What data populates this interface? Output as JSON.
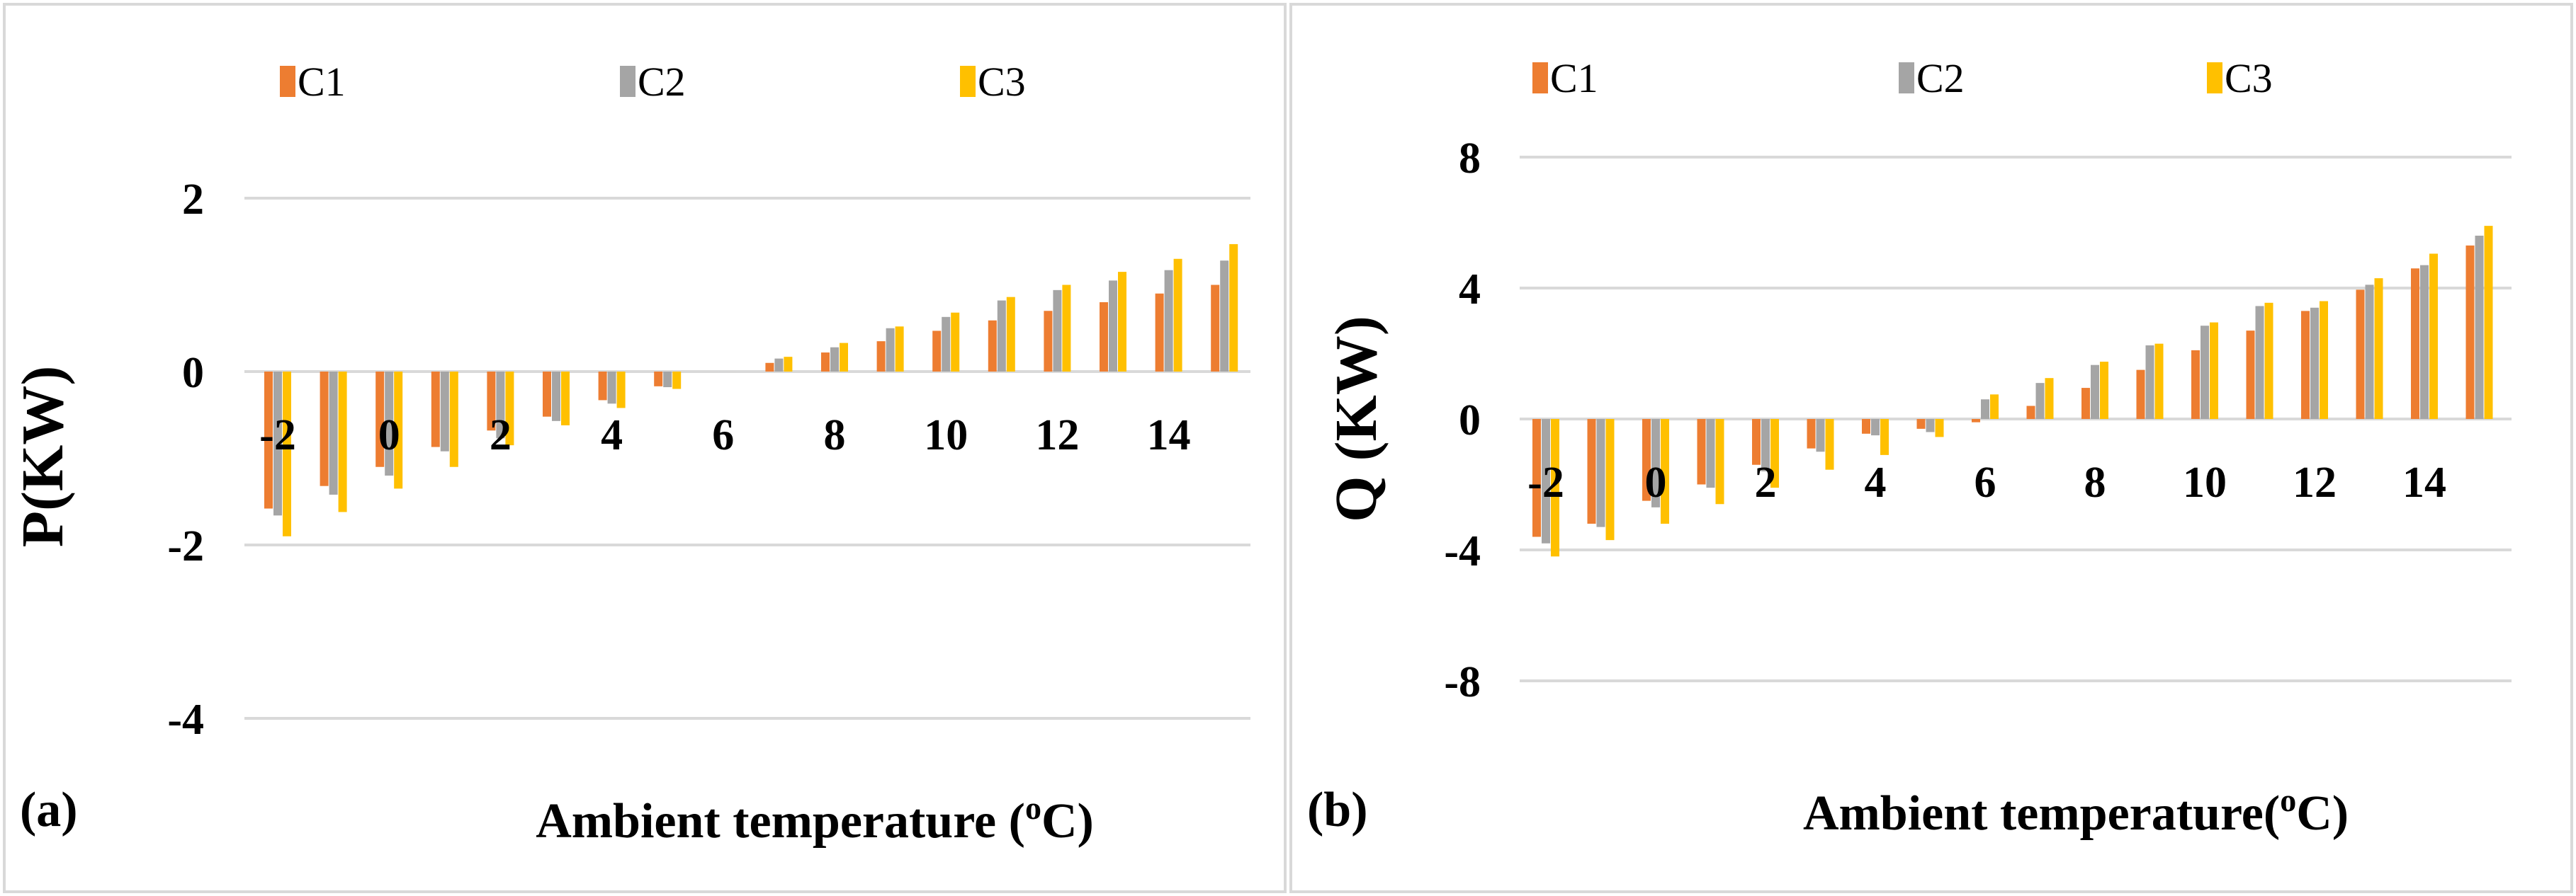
{
  "chart_data": [
    {
      "type": "bar",
      "panel_label": "(a)",
      "xlabel": "Ambient temperature (",
      "xlabel_superscript": "o",
      "xlabel_suffix": "C)",
      "ylabel": "P(KW)",
      "ylim": [
        -4,
        2
      ],
      "yticks": [
        "2",
        "0",
        "-2",
        "-4"
      ],
      "categories": [
        -2,
        -1,
        0,
        1,
        2,
        3,
        4,
        5,
        6,
        7,
        8,
        9,
        10,
        11,
        12,
        13,
        14,
        15
      ],
      "xtick_labels": [
        "-2",
        "0",
        "2",
        "4",
        "6",
        "8",
        "10",
        "12",
        "14"
      ],
      "grid": true,
      "legend": "top",
      "series": [
        {
          "name": "C1",
          "color": "#ED7D31",
          "values": [
            -1.58,
            -1.32,
            -1.1,
            -0.87,
            -0.68,
            -0.52,
            -0.33,
            -0.17,
            0.0,
            0.1,
            0.22,
            0.35,
            0.47,
            0.59,
            0.7,
            0.8,
            0.9,
            1.0
          ]
        },
        {
          "name": "C2",
          "color": "#A5A5A5",
          "values": [
            -1.66,
            -1.42,
            -1.2,
            -0.92,
            -0.77,
            -0.57,
            -0.37,
            -0.18,
            0.0,
            0.15,
            0.28,
            0.5,
            0.63,
            0.82,
            0.94,
            1.05,
            1.17,
            1.28
          ]
        },
        {
          "name": "C3",
          "color": "#FFC000",
          "values": [
            -1.9,
            -1.62,
            -1.35,
            -1.1,
            -0.85,
            -0.62,
            -0.42,
            -0.2,
            0.0,
            0.17,
            0.33,
            0.52,
            0.68,
            0.86,
            1.0,
            1.15,
            1.3,
            1.47
          ]
        }
      ]
    },
    {
      "type": "bar",
      "panel_label": "(b)",
      "xlabel": "Ambient temperature(",
      "xlabel_superscript": "o",
      "xlabel_suffix": "C)",
      "ylabel": "Q (KW)",
      "ylim": [
        -8,
        8
      ],
      "yticks": [
        "8",
        "4",
        "0",
        "-4",
        "-8"
      ],
      "categories": [
        -2,
        -1,
        0,
        1,
        2,
        3,
        4,
        5,
        6,
        7,
        8,
        9,
        10,
        11,
        12,
        13,
        14,
        15
      ],
      "xtick_labels": [
        "-2",
        "0",
        "2",
        "4",
        "6",
        "8",
        "10",
        "12",
        "14"
      ],
      "grid": true,
      "legend": "top",
      "series": [
        {
          "name": "C1",
          "color": "#ED7D31",
          "values": [
            -3.6,
            -3.2,
            -2.5,
            -2.0,
            -1.4,
            -0.9,
            -0.45,
            -0.3,
            -0.1,
            0.4,
            0.95,
            1.5,
            2.1,
            2.7,
            3.3,
            3.95,
            4.6,
            5.3
          ]
        },
        {
          "name": "C2",
          "color": "#A5A5A5",
          "values": [
            -3.8,
            -3.3,
            -2.7,
            -2.1,
            -1.6,
            -1.0,
            -0.5,
            -0.4,
            0.6,
            1.1,
            1.65,
            2.25,
            2.85,
            3.45,
            3.4,
            4.1,
            4.7,
            5.6
          ]
        },
        {
          "name": "C3",
          "color": "#FFC000",
          "values": [
            -4.2,
            -3.7,
            -3.2,
            -2.6,
            -2.1,
            -1.55,
            -1.1,
            -0.55,
            0.75,
            1.25,
            1.75,
            2.3,
            2.95,
            3.55,
            3.6,
            4.3,
            5.05,
            5.9
          ]
        }
      ]
    }
  ]
}
